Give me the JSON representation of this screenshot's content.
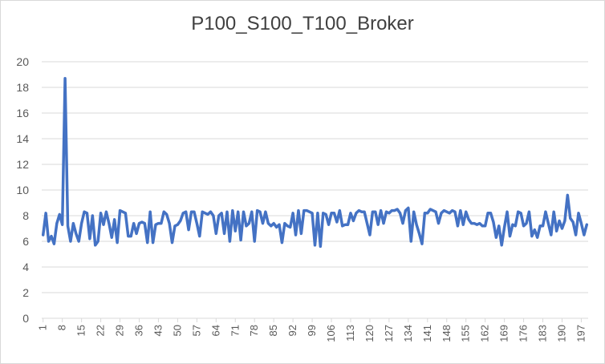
{
  "chart_data": {
    "type": "line",
    "title": "P100_S100_T100_Broker",
    "xlabel": "",
    "ylabel": "",
    "ylim": [
      0,
      20
    ],
    "yticks": [
      0,
      2,
      4,
      6,
      8,
      10,
      12,
      14,
      16,
      18,
      20
    ],
    "xtick_labels": [
      "1",
      "8",
      "15",
      "22",
      "29",
      "36",
      "43",
      "50",
      "57",
      "64",
      "71",
      "78",
      "85",
      "92",
      "99",
      "106",
      "113",
      "120",
      "127",
      "134",
      "141",
      "148",
      "155",
      "162",
      "169",
      "176",
      "183",
      "190",
      "197"
    ],
    "grid": "horizontal",
    "legend": "none",
    "series_color": "#4472c4",
    "series": [
      {
        "values": [
          6.5,
          8.2,
          6.0,
          6.4,
          5.8,
          7.4,
          8.1,
          7.3,
          18.7,
          7.2,
          6.0,
          7.4,
          6.6,
          6.0,
          7.4,
          8.3,
          8.2,
          6.2,
          8.0,
          5.7,
          6.0,
          8.2,
          7.3,
          8.3,
          7.4,
          6.3,
          7.7,
          5.9,
          8.4,
          8.3,
          8.2,
          6.4,
          6.4,
          7.4,
          6.6,
          7.4,
          7.5,
          7.4,
          5.9,
          8.3,
          5.9,
          7.3,
          7.4,
          7.4,
          8.3,
          8.1,
          7.4,
          5.9,
          7.2,
          7.3,
          7.6,
          8.2,
          8.3,
          6.9,
          8.3,
          8.3,
          7.4,
          6.4,
          8.3,
          8.2,
          8.1,
          8.3,
          8.0,
          6.6,
          8.0,
          8.2,
          6.6,
          8.3,
          6.0,
          8.4,
          6.8,
          8.3,
          6.1,
          8.3,
          7.2,
          7.4,
          8.3,
          6.0,
          8.4,
          8.3,
          7.4,
          8.3,
          7.4,
          7.2,
          7.4,
          7.1,
          7.3,
          5.9,
          7.4,
          7.2,
          7.1,
          8.2,
          6.5,
          8.4,
          6.6,
          8.4,
          8.4,
          8.3,
          8.2,
          5.7,
          8.2,
          5.6,
          8.2,
          8.1,
          7.3,
          8.2,
          8.2,
          7.5,
          8.4,
          7.2,
          7.3,
          7.3,
          8.2,
          7.6,
          8.2,
          8.4,
          8.3,
          8.3,
          7.4,
          6.5,
          8.3,
          8.3,
          7.3,
          8.4,
          7.4,
          8.3,
          8.2,
          8.4,
          8.4,
          8.5,
          8.2,
          7.4,
          8.4,
          8.6,
          6.0,
          8.3,
          7.3,
          6.6,
          5.8,
          8.2,
          8.2,
          8.5,
          8.4,
          8.3,
          7.4,
          8.2,
          8.4,
          8.3,
          8.2,
          8.4,
          8.3,
          7.2,
          8.4,
          7.3,
          8.3,
          7.7,
          7.4,
          7.4,
          7.3,
          7.4,
          7.2,
          7.2,
          8.2,
          8.2,
          7.5,
          6.3,
          7.2,
          5.7,
          7.1,
          8.3,
          6.4,
          7.3,
          7.2,
          8.3,
          8.2,
          7.2,
          7.4,
          8.3,
          6.4,
          6.9,
          6.3,
          7.2,
          7.2,
          8.3,
          7.4,
          6.5,
          8.3,
          6.8,
          7.6,
          7.0,
          7.6,
          9.6,
          7.8,
          7.5,
          6.5,
          8.2,
          7.4,
          6.5,
          7.3
        ]
      }
    ]
  }
}
